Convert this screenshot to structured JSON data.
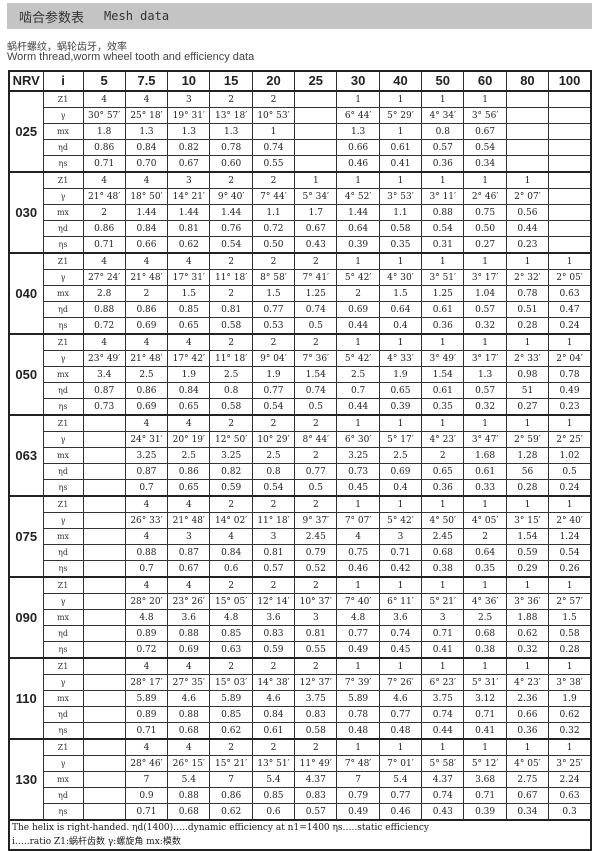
{
  "title": {
    "cn": "啮合参数表",
    "en": "Mesh data"
  },
  "subtitle": {
    "cn": "蜗杆螺纹，蜗轮齿牙，效率",
    "en": "Worm thread,worm wheel tooth and efficiency data"
  },
  "header": [
    "NRV",
    "i",
    "5",
    "7.5",
    "10",
    "15",
    "20",
    "25",
    "30",
    "40",
    "50",
    "60",
    "80",
    "100"
  ],
  "row_labels": [
    "Z1",
    "γ",
    "mx",
    "ηd",
    "ηs"
  ],
  "groups": [
    {
      "nrv": "025",
      "rows": [
        [
          "4",
          "4",
          "3",
          "2",
          "2",
          "",
          "1",
          "1",
          "1",
          "1",
          "",
          ""
        ],
        [
          "30° 57′",
          "25° 18′",
          "19° 31′",
          "13° 18′",
          "10° 53′",
          "",
          "6° 44′",
          "5° 29′",
          "4° 34′",
          "3° 56′",
          "",
          ""
        ],
        [
          "1.8",
          "1.3",
          "1.3",
          "1.3",
          "1",
          "",
          "1.3",
          "1",
          "0.8",
          "0.67",
          "",
          ""
        ],
        [
          "0.86",
          "0.84",
          "0.82",
          "0.78",
          "0.74",
          "",
          "0.66",
          "0.61",
          "0.57",
          "0.54",
          "",
          ""
        ],
        [
          "0.71",
          "0.70",
          "0.67",
          "0.60",
          "0.55",
          "",
          "0.46",
          "0.41",
          "0.36",
          "0.34",
          "",
          ""
        ]
      ]
    },
    {
      "nrv": "030",
      "rows": [
        [
          "4",
          "4",
          "3",
          "2",
          "2",
          "1",
          "1",
          "1",
          "1",
          "1",
          "1",
          ""
        ],
        [
          "21° 48′",
          "18° 50′",
          "14° 21′",
          "9° 40′",
          "7° 44′",
          "5° 34′",
          "4° 52′",
          "3° 53′",
          "3° 11′",
          "2° 46′",
          "2° 07′",
          ""
        ],
        [
          "2",
          "1.44",
          "1.44",
          "1.44",
          "1.1",
          "1.7",
          "1.44",
          "1.1",
          "0.88",
          "0.75",
          "0.56",
          ""
        ],
        [
          "0.86",
          "0.84",
          "0.81",
          "0.76",
          "0.72",
          "0.67",
          "0.64",
          "0.58",
          "0.54",
          "0.50",
          "0.44",
          ""
        ],
        [
          "0.71",
          "0.66",
          "0.62",
          "0.54",
          "0.50",
          "0.43",
          "0.39",
          "0.35",
          "0.31",
          "0.27",
          "0.23",
          ""
        ]
      ]
    },
    {
      "nrv": "040",
      "rows": [
        [
          "4",
          "4",
          "4",
          "2",
          "2",
          "2",
          "1",
          "1",
          "1",
          "1",
          "1",
          "1"
        ],
        [
          "27° 24′",
          "21° 48′",
          "17° 31′",
          "11° 18′",
          "8° 58′",
          "7° 41′",
          "5° 42′",
          "4° 30′",
          "3° 51′",
          "3° 17′",
          "2° 32′",
          "2° 05′"
        ],
        [
          "2.8",
          "2",
          "1.5",
          "2",
          "1.5",
          "1.25",
          "2",
          "1.5",
          "1.25",
          "1.04",
          "0.78",
          "0.63"
        ],
        [
          "0.88",
          "0.86",
          "0.85",
          "0.81",
          "0.77",
          "0.74",
          "0.69",
          "0.64",
          "0.61",
          "0.57",
          "0.51",
          "0.47"
        ],
        [
          "0.72",
          "0.69",
          "0.65",
          "0.58",
          "0.53",
          "0.5",
          "0.44",
          "0.4",
          "0.36",
          "0.32",
          "0.28",
          "0.24"
        ]
      ]
    },
    {
      "nrv": "050",
      "rows": [
        [
          "4",
          "4",
          "4",
          "2",
          "2",
          "2",
          "1",
          "1",
          "1",
          "1",
          "1",
          "1"
        ],
        [
          "23° 49′",
          "21° 48′",
          "17° 42′",
          "11° 18′",
          "9° 04′",
          "7° 36′",
          "5° 42′",
          "4° 33′",
          "3° 49′",
          "3° 17′",
          "2° 33′",
          "2° 04′"
        ],
        [
          "3.4",
          "2.5",
          "1.9",
          "2.5",
          "1.9",
          "1.54",
          "2.5",
          "1.9",
          "1.54",
          "1.3",
          "0.98",
          "0.78"
        ],
        [
          "0.87",
          "0.86",
          "0.84",
          "0.8",
          "0.77",
          "0.74",
          "0.7",
          "0.65",
          "0.61",
          "0.57",
          "51",
          "0.49"
        ],
        [
          "0.73",
          "0.69",
          "0.65",
          "0.58",
          "0.54",
          "0.5",
          "0.44",
          "0.39",
          "0.35",
          "0.32",
          "0.27",
          "0.23"
        ]
      ]
    },
    {
      "nrv": "063",
      "rows": [
        [
          "",
          "4",
          "4",
          "2",
          "2",
          "2",
          "1",
          "1",
          "1",
          "1",
          "1",
          "1"
        ],
        [
          "",
          "24° 31′",
          "20° 19′",
          "12° 50′",
          "10° 29′",
          "8° 44′",
          "6° 30′",
          "5° 17′",
          "4° 23′",
          "3° 47′",
          "2° 59′",
          "2° 25′"
        ],
        [
          "",
          "3.25",
          "2.5",
          "3.25",
          "2.5",
          "2",
          "3.25",
          "2.5",
          "2",
          "1.68",
          "1.28",
          "1.02"
        ],
        [
          "",
          "0.87",
          "0.86",
          "0.82",
          "0.8",
          "0.77",
          "0.73",
          "0.69",
          "0.65",
          "0.61",
          "56",
          "0.5"
        ],
        [
          "",
          "0.7",
          "0.65",
          "0.59",
          "0.54",
          "0.5",
          "0.45",
          "0.4",
          "0.36",
          "0.33",
          "0.28",
          "0.24"
        ]
      ]
    },
    {
      "nrv": "075",
      "rows": [
        [
          "",
          "4",
          "4",
          "2",
          "2",
          "2",
          "1",
          "1",
          "1",
          "1",
          "1",
          "1"
        ],
        [
          "",
          "26° 33′",
          "21° 48′",
          "14° 02′",
          "11° 18′",
          "9° 37′",
          "7° 07′",
          "5° 42′",
          "4° 50′",
          "4° 05′",
          "3° 15′",
          "2° 40′"
        ],
        [
          "",
          "4",
          "3",
          "4",
          "3",
          "2.45",
          "4",
          "3",
          "2.45",
          "2",
          "1.54",
          "1.24"
        ],
        [
          "",
          "0.88",
          "0.87",
          "0.84",
          "0.81",
          "0.79",
          "0.75",
          "0.71",
          "0.68",
          "0.64",
          "0.59",
          "0.54"
        ],
        [
          "",
          "0.7",
          "0.67",
          "0.6",
          "0.57",
          "0.52",
          "0.46",
          "0.42",
          "0.38",
          "0.35",
          "0.29",
          "0.26"
        ]
      ]
    },
    {
      "nrv": "090",
      "rows": [
        [
          "",
          "4",
          "4",
          "2",
          "2",
          "2",
          "1",
          "1",
          "1",
          "1",
          "1",
          "1"
        ],
        [
          "",
          "28° 20′",
          "23° 26′",
          "15° 05′",
          "12° 14′",
          "10° 37′",
          "7° 40′",
          "6° 11′",
          "5° 21′",
          "4° 36′",
          "3° 36′",
          "2° 57′"
        ],
        [
          "",
          "4.8",
          "3.6",
          "4.8",
          "3.6",
          "3",
          "4.8",
          "3.6",
          "3",
          "2.5",
          "1.88",
          "1.5"
        ],
        [
          "",
          "0.89",
          "0.88",
          "0.85",
          "0.83",
          "0.81",
          "0.77",
          "0.74",
          "0.71",
          "0.68",
          "0.62",
          "0.58"
        ],
        [
          "",
          "0.72",
          "0.69",
          "0.63",
          "0.59",
          "0.55",
          "0.49",
          "0.45",
          "0.41",
          "0.38",
          "0.32",
          "0.28"
        ]
      ]
    },
    {
      "nrv": "110",
      "rows": [
        [
          "",
          "4",
          "4",
          "2",
          "2",
          "2",
          "1",
          "1",
          "1",
          "1",
          "1",
          "1"
        ],
        [
          "",
          "28° 17′",
          "27° 35′",
          "15° 03′",
          "14° 38′",
          "12° 37′",
          "7° 39′",
          "7° 26′",
          "6° 23′",
          "5° 31′",
          "4° 23′",
          "3° 38′"
        ],
        [
          "",
          "5.89",
          "4.6",
          "5.89",
          "4.6",
          "3.75",
          "5.89",
          "4.6",
          "3.75",
          "3.12",
          "2.36",
          "1.9"
        ],
        [
          "",
          "0.89",
          "0.88",
          "0.85",
          "0.84",
          "0.83",
          "0.78",
          "0.77",
          "0.74",
          "0.71",
          "0.66",
          "0.62"
        ],
        [
          "",
          "0.71",
          "0.68",
          "0.62",
          "0.61",
          "0.58",
          "0.48",
          "0.48",
          "0.44",
          "0.41",
          "0.36",
          "0.32"
        ]
      ]
    },
    {
      "nrv": "130",
      "rows": [
        [
          "",
          "4",
          "4",
          "2",
          "2",
          "2",
          "1",
          "1",
          "1",
          "1",
          "1",
          "1"
        ],
        [
          "",
          "28° 46′",
          "26° 15′",
          "15° 21′",
          "13° 51′",
          "11° 49′",
          "7° 48′",
          "7° 01′",
          "5° 58′",
          "5° 12′",
          "4° 05′",
          "3° 25′"
        ],
        [
          "",
          "7",
          "5.4",
          "7",
          "5.4",
          "4.37",
          "7",
          "5.4",
          "4.37",
          "3.68",
          "2.75",
          "2.24"
        ],
        [
          "",
          "0.9",
          "0.88",
          "0.86",
          "0.85",
          "0.83",
          "0.79",
          "0.77",
          "0.74",
          "0.71",
          "0.67",
          "0.63"
        ],
        [
          "",
          "0.71",
          "0.68",
          "0.62",
          "0.6",
          "0.57",
          "0.49",
          "0.46",
          "0.43",
          "0.39",
          "0.34",
          "0.3"
        ]
      ]
    }
  ],
  "footer": {
    "line1": "The helix is right-handed.    ηd(1400)…..dynamic efficiency at n1=1400     ηs…..static efficiency",
    "line2": "i…..ratio  Z1:蜗杆齿数  γ:螺旋角  mx:模数"
  }
}
